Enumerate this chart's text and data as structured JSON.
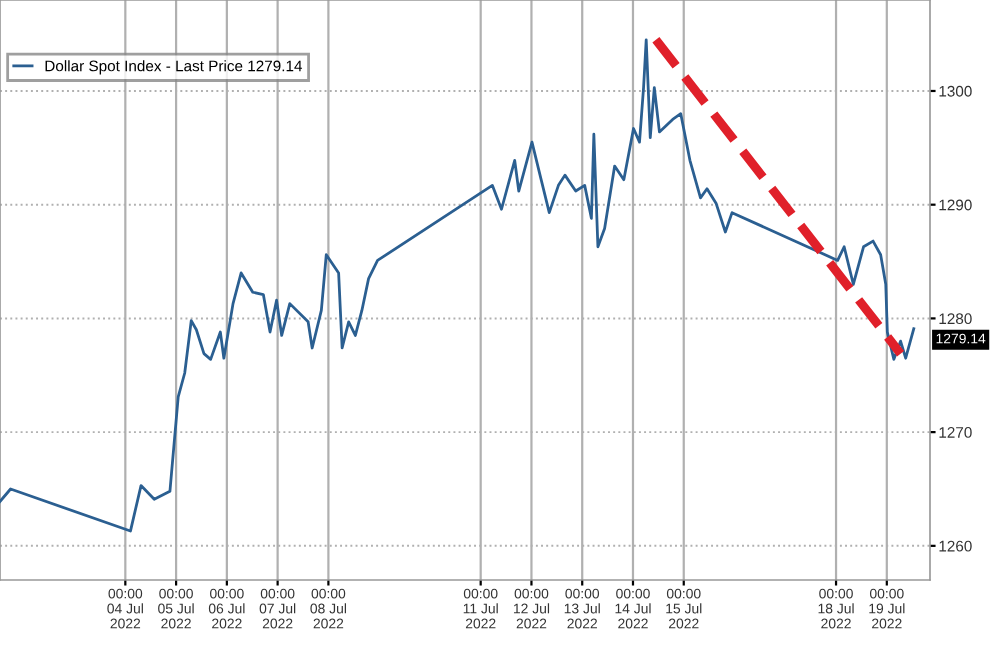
{
  "chart_data": {
    "type": "line",
    "x": [
      "2022-07-01T12:45",
      "2022-07-01T17:45",
      "2022-07-04T02:25",
      "2022-07-04T07:25",
      "2022-07-04T13:40",
      "2022-07-04T21:05",
      "2022-07-04T21:50",
      "2022-07-05T01:00",
      "2022-07-05T04:05",
      "2022-07-05T07:10",
      "2022-07-05T09:35",
      "2022-07-05T13:10",
      "2022-07-05T16:20",
      "2022-07-05T20:55",
      "2022-07-05T22:35",
      "2022-07-06T02:55",
      "2022-07-06T06:45",
      "2022-07-06T12:15",
      "2022-07-06T17:15",
      "2022-07-06T20:25",
      "2022-07-06T23:30",
      "2022-07-07T01:55",
      "2022-07-07T05:45",
      "2022-07-07T14:25",
      "2022-07-07T16:20",
      "2022-07-07T20:40",
      "2022-07-07T23:00",
      "2022-07-08T04:50",
      "2022-07-08T06:30",
      "2022-07-08T09:35",
      "2022-07-08T12:45",
      "2022-07-08T15:50",
      "2022-07-08T19:00",
      "2022-07-08T23:15",
      "2022-07-11T05:30",
      "2022-07-11T09:50",
      "2022-07-11T16:05",
      "2022-07-11T18:00",
      "2022-07-12T00:15",
      "2022-07-12T04:35",
      "2022-07-12T08:25",
      "2022-07-12T12:45",
      "2022-07-12T15:50",
      "2022-07-12T20:55",
      "2022-07-13T01:10",
      "2022-07-13T04:20",
      "2022-07-13T05:30",
      "2022-07-13T07:25",
      "2022-07-13T10:35",
      "2022-07-13T15:20",
      "2022-07-13T19:40",
      "2022-07-14T00:15",
      "2022-07-14T03:05",
      "2022-07-14T05:00",
      "2022-07-14T06:15",
      "2022-07-14T08:10",
      "2022-07-14T10:05",
      "2022-07-14T12:30",
      "2022-07-14T18:45",
      "2022-07-14T22:35",
      "2022-07-15T02:55",
      "2022-07-15T07:55",
      "2022-07-15T11:00",
      "2022-07-15T15:20",
      "2022-07-15T19:40",
      "2022-07-15T22:50",
      "2022-07-18T00:45",
      "2022-07-18T03:50",
      "2022-07-18T08:10",
      "2022-07-18T13:00",
      "2022-07-18T17:30",
      "2022-07-18T21:05",
      "2022-07-18T23:30",
      "2022-07-19T00:15",
      "2022-07-19T03:20",
      "2022-07-19T06:30",
      "2022-07-19T08:55",
      "2022-07-19T12:45"
    ],
    "series": [
      {
        "name": "Dollar Spot Index - Last Price 1279.14",
        "color": "#2b5f91",
        "values": [
          1263.9,
          1265.0,
          1261.3,
          1265.3,
          1264.1,
          1264.8,
          1266.4,
          1273.1,
          1275.2,
          1279.8,
          1279.0,
          1276.9,
          1276.4,
          1278.8,
          1276.5,
          1281.3,
          1284.0,
          1282.3,
          1282.1,
          1278.8,
          1281.6,
          1278.5,
          1281.3,
          1279.7,
          1277.4,
          1280.7,
          1285.6,
          1284.0,
          1277.4,
          1279.7,
          1278.5,
          1280.7,
          1283.5,
          1285.1,
          1291.7,
          1289.6,
          1293.9,
          1291.2,
          1295.5,
          1292.2,
          1289.3,
          1291.7,
          1292.6,
          1291.2,
          1291.7,
          1288.8,
          1296.2,
          1286.3,
          1287.9,
          1293.4,
          1292.2,
          1296.7,
          1295.5,
          1300.3,
          1304.5,
          1295.9,
          1300.3,
          1296.4,
          1297.5,
          1298.0,
          1293.9,
          1290.6,
          1291.4,
          1290.1,
          1287.6,
          1289.3,
          1285.1,
          1286.3,
          1283.0,
          1286.3,
          1286.8,
          1285.6,
          1283.0,
          1278.8,
          1276.4,
          1278.0,
          1276.5,
          1279.1
        ]
      },
      {
        "type": "line",
        "color": "#e0202a",
        "line_style": "dashed",
        "x": [
          "2022-07-14T10:50",
          "2022-07-19T06:30"
        ],
        "values": [
          1304.5,
          1276.9
        ]
      }
    ],
    "xlim": [
      "2022-07-01T12:45",
      "2022-07-19T20:25"
    ],
    "ylim": [
      1257,
      1308
    ],
    "xticks": [
      {
        "value": "2022-07-04T00:00",
        "label": "00:00\n04 Jul 2022"
      },
      {
        "value": "2022-07-05T00:00",
        "label": "00:00\n05 Jul 2022"
      },
      {
        "value": "2022-07-06T00:00",
        "label": "00:00\n06 Jul 2022"
      },
      {
        "value": "2022-07-07T00:00",
        "label": "00:00\n07 Jul 2022"
      },
      {
        "value": "2022-07-08T00:00",
        "label": "00:00\n08 Jul 2022"
      },
      {
        "value": "2022-07-11T00:00",
        "label": "00:00\n11 Jul 2022"
      },
      {
        "value": "2022-07-12T00:00",
        "label": "00:00\n12 Jul 2022"
      },
      {
        "value": "2022-07-13T00:00",
        "label": "00:00\n13 Jul 2022"
      },
      {
        "value": "2022-07-14T00:00",
        "label": "00:00\n14 Jul 2022"
      },
      {
        "value": "2022-07-15T00:00",
        "label": "00:00\n15 Jul 2022"
      },
      {
        "value": "2022-07-18T00:00",
        "label": "00:00\n18 Jul 2022"
      },
      {
        "value": "2022-07-19T00:00",
        "label": "00:00\n19 Jul 2022"
      }
    ],
    "yticks": [
      1260,
      1270,
      1280,
      1290,
      1300
    ],
    "annotations": [
      "1279.14"
    ],
    "grid": true,
    "legend": "top left",
    "line_style": "solid",
    "marker": "none"
  }
}
